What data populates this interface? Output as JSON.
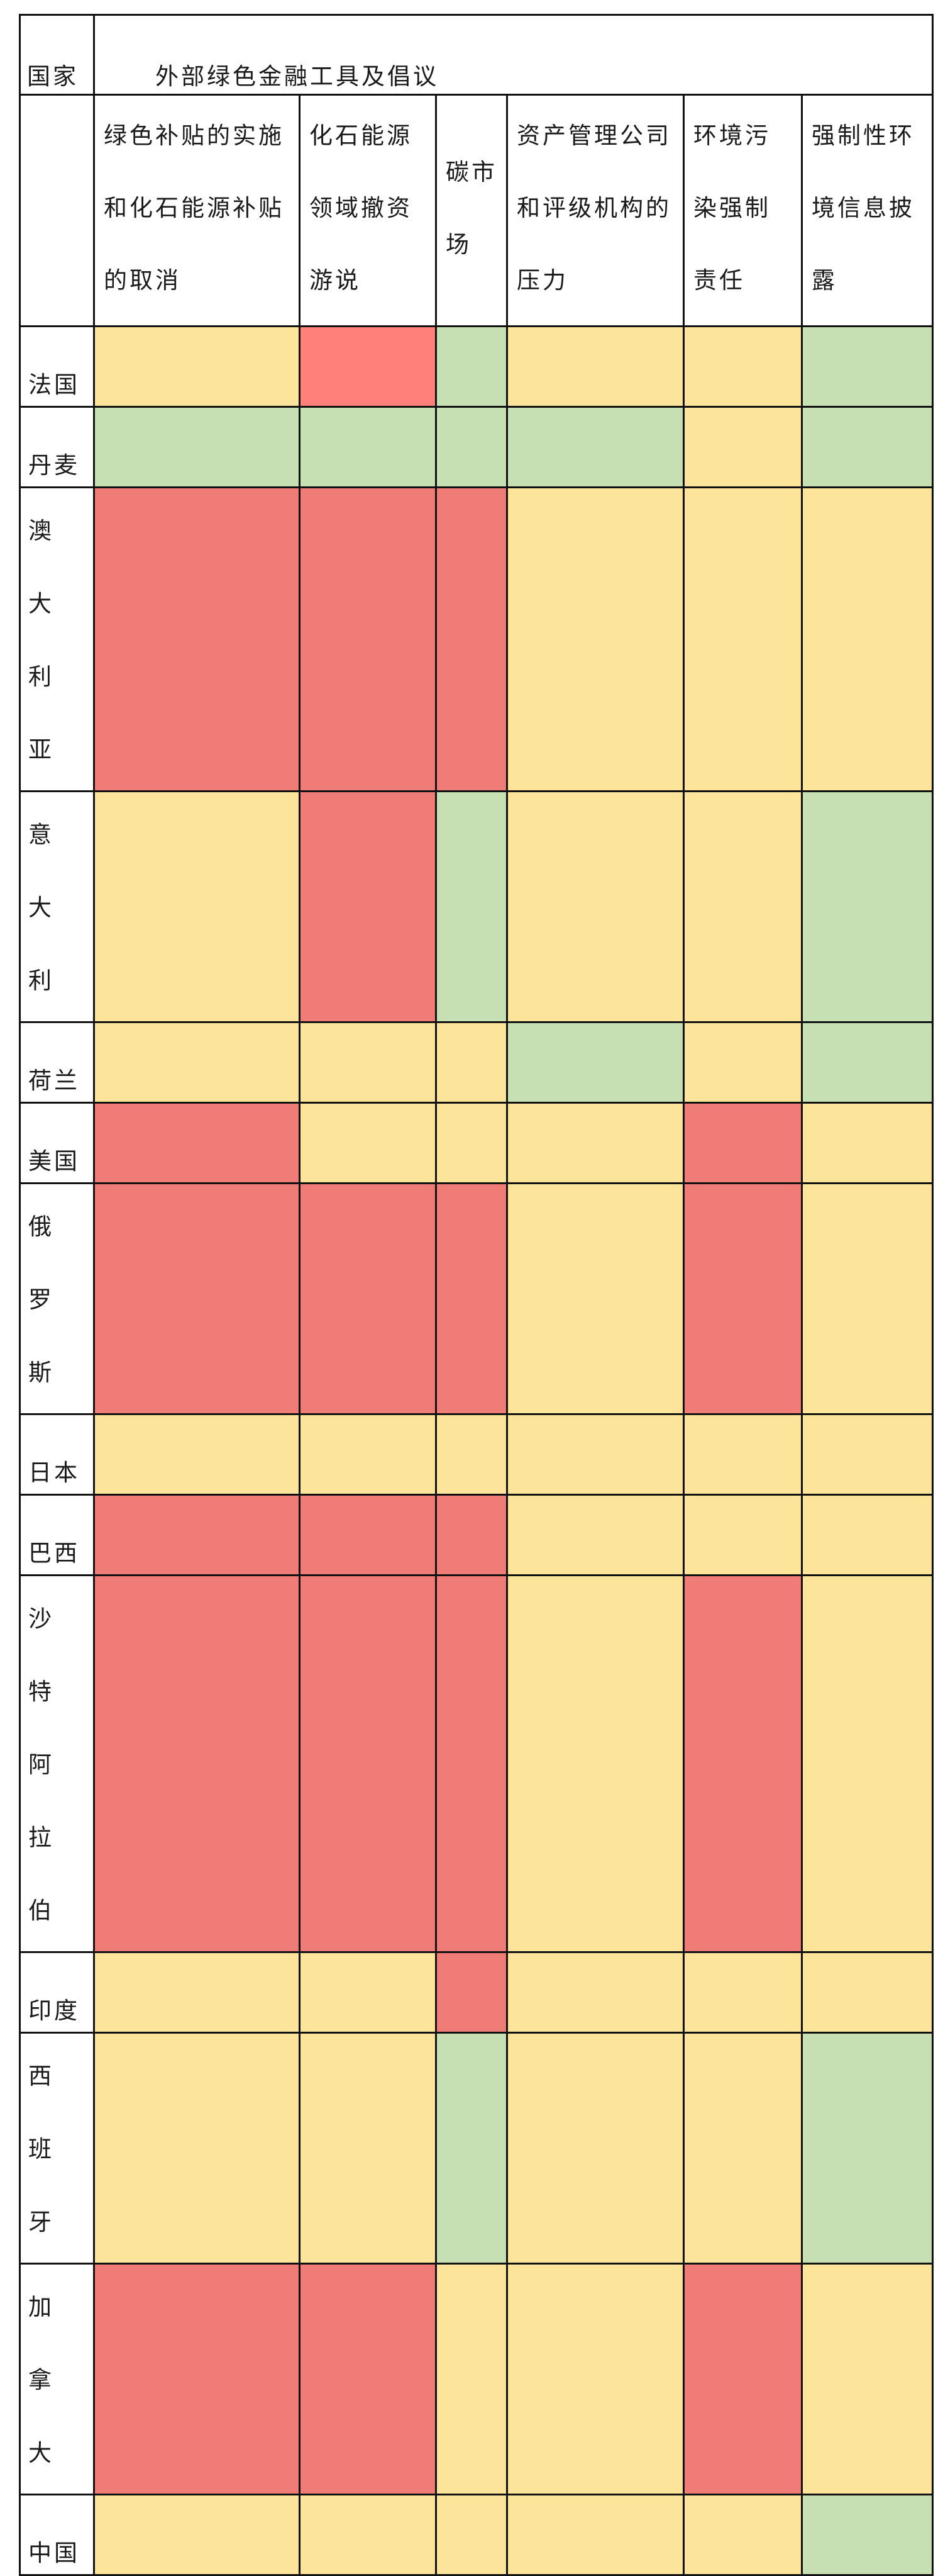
{
  "header": {
    "country_label": "国家",
    "title": "外部绿色金融工具及倡议"
  },
  "columns": [
    "绿色补贴的实施和化石能源补贴的取消",
    "化石能源领域撤资游说",
    "碳市场",
    "资产管理公司和评级机构的压力",
    "环境污染强制责任",
    "强制性环境信息披露"
  ],
  "legend_colors": {
    "R": "#f07c77",
    "Y": "#fde49b",
    "G": "#c6dfb3",
    "P": "#ff7f7b"
  },
  "rows": [
    {
      "country": "法国",
      "cells": [
        "Y",
        "P",
        "G",
        "Y",
        "Y",
        "G"
      ]
    },
    {
      "country": "丹麦",
      "cells": [
        "G",
        "G",
        "G",
        "G",
        "Y",
        "G"
      ]
    },
    {
      "country": "澳大利亚",
      "cells": [
        "R",
        "R",
        "R",
        "Y",
        "Y",
        "Y"
      ]
    },
    {
      "country": "意大利",
      "cells": [
        "Y",
        "R",
        "G",
        "Y",
        "Y",
        "G"
      ]
    },
    {
      "country": "荷兰",
      "cells": [
        "Y",
        "Y",
        "Y",
        "G",
        "Y",
        "G"
      ]
    },
    {
      "country": "美国",
      "cells": [
        "R",
        "Y",
        "Y",
        "Y",
        "R",
        "Y"
      ]
    },
    {
      "country": "俄罗斯",
      "cells": [
        "R",
        "R",
        "R",
        "Y",
        "R",
        "Y"
      ]
    },
    {
      "country": "日本",
      "cells": [
        "Y",
        "Y",
        "Y",
        "Y",
        "Y",
        "Y"
      ]
    },
    {
      "country": "巴西",
      "cells": [
        "R",
        "R",
        "R",
        "Y",
        "Y",
        "Y"
      ]
    },
    {
      "country": "沙特阿拉伯",
      "cells": [
        "R",
        "R",
        "R",
        "Y",
        "R",
        "Y"
      ]
    },
    {
      "country": "印度",
      "cells": [
        "Y",
        "Y",
        "R",
        "Y",
        "Y",
        "Y"
      ]
    },
    {
      "country": "西班牙",
      "cells": [
        "Y",
        "Y",
        "G",
        "Y",
        "Y",
        "G"
      ]
    },
    {
      "country": "加拿大",
      "cells": [
        "R",
        "R",
        "Y",
        "Y",
        "R",
        "Y"
      ]
    },
    {
      "country": "中国",
      "cells": [
        "Y",
        "Y",
        "Y",
        "Y",
        "Y",
        "G"
      ]
    }
  ]
}
